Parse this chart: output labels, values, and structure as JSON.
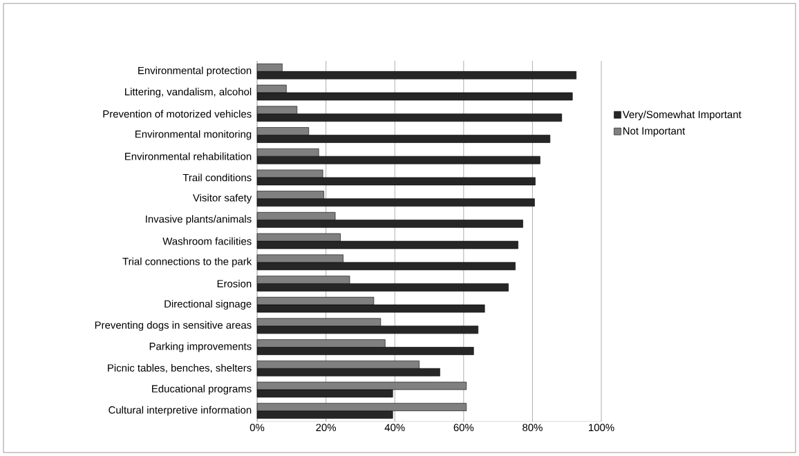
{
  "chart_data": {
    "type": "bar",
    "orientation": "horizontal",
    "categories": [
      "Environmental protection",
      "Littering, vandalism, alcohol",
      "Prevention of motorized vehicles",
      "Environmental monitoring",
      "Environmental rehabilitation",
      "Trail conditions",
      "Visitor safety",
      "Invasive plants/animals",
      "Washroom facilities",
      "Trial connections to the park",
      "Erosion",
      "Directional signage",
      "Preventing dogs in sensitive areas",
      "Parking improvements",
      "Picnic tables, benches, shelters",
      "Educational programs",
      "Cultural interpretive information"
    ],
    "series": [
      {
        "name": "Very/Somewhat Important",
        "color": "#262626",
        "values": [
          92.7,
          91.6,
          88.5,
          85.1,
          82.2,
          80.8,
          80.6,
          77.2,
          75.8,
          75.0,
          73.0,
          66.1,
          64.2,
          62.9,
          53.1,
          39.4,
          39.4
        ]
      },
      {
        "name": "Not Important",
        "color": "#808080",
        "values": [
          7.3,
          8.5,
          11.6,
          15.0,
          17.9,
          19.1,
          19.4,
          22.7,
          24.2,
          25.0,
          26.9,
          33.9,
          35.9,
          37.2,
          47.1,
          60.8,
          60.8
        ]
      }
    ],
    "xlim": [
      0,
      100
    ],
    "xticks": [
      {
        "value": 0,
        "label": "0%"
      },
      {
        "value": 20,
        "label": "20%"
      },
      {
        "value": 40,
        "label": "40%"
      },
      {
        "value": 60,
        "label": "60%"
      },
      {
        "value": 80,
        "label": "80%"
      },
      {
        "value": 100,
        "label": "100%"
      }
    ],
    "grid": "x",
    "legend": "right"
  }
}
